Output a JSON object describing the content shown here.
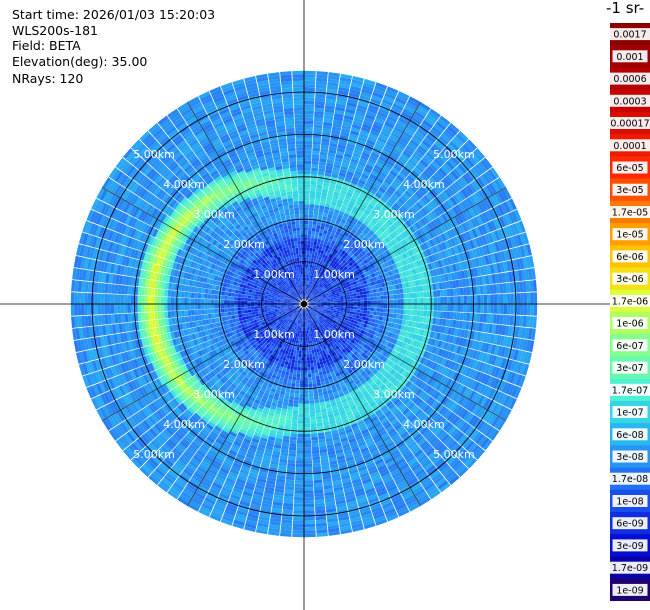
{
  "header": {
    "start_time": "Start time: 2026/01/03 15:20:03",
    "device": "WLS200s-181",
    "field": "Field: BETA",
    "elevation": "Elevation(deg): 35.00",
    "nrays": "NRays: 120"
  },
  "chart_data": {
    "type": "heatmap",
    "projection": "polar PPI",
    "field": "BETA",
    "n_rays": 120,
    "elevation_deg": 35.0,
    "range_max_km": 5.5,
    "range_rings_km": [
      1,
      2,
      3,
      4,
      5
    ],
    "range_ring_labels": [
      "1.00km",
      "2.00km",
      "3.00km",
      "4.00km",
      "5.00km"
    ],
    "colorbar_unit": "-1 sr-",
    "colorbar_ticks": [
      "0.0017",
      "0.001",
      "0.0006",
      "0.0003",
      "0.00017",
      "0.0001",
      "6e-05",
      "3e-05",
      "1.7e-05",
      "1e-05",
      "6e-06",
      "3e-06",
      "1.7e-06",
      "1e-06",
      "6e-07",
      "3e-07",
      "1.7e-07",
      "1e-07",
      "6e-08",
      "3e-08",
      "1.7e-08",
      "1e-08",
      "6e-09",
      "3e-09",
      "1.7e-09",
      "1e-09"
    ],
    "colors": {
      "background_field": "#2a80f0",
      "ring_enhancement": "#5ee0c8",
      "peak": "#f0f040",
      "near_field": "#0a2ae0"
    }
  }
}
